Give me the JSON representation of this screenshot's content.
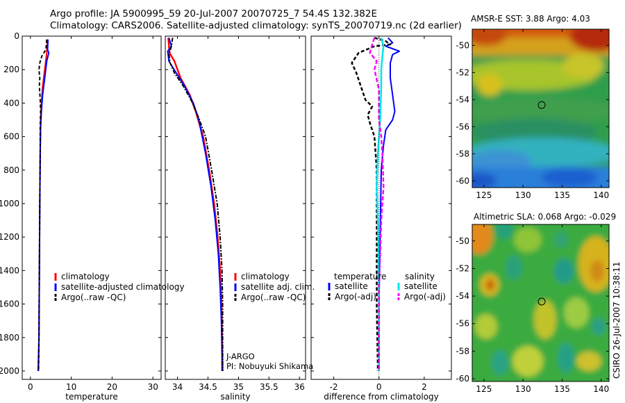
{
  "title_line1": "Argo profile: JA 5900995_59 20-Jul-2007 20070725_7 54.4S 132.382E",
  "title_line2": "Climatology: CARS2006. Satellite-adjusted climatology: synTS_20070719.nc (2d earlier)",
  "side_label": "CSIRO 26-Jul-2007 10:38:11",
  "colors": {
    "climatology": "#ff0000",
    "satellite": "#0000ff",
    "argo": "#000000",
    "sal_satellite": "#00e5ee",
    "sal_argo": "#ff00ff"
  },
  "chart_data": [
    {
      "type": "line",
      "id": "temperature",
      "xlabel": "temperature",
      "xlim": [
        -2,
        32
      ],
      "ylim": [
        2050,
        0
      ],
      "xticks": [
        0,
        10,
        20,
        30
      ],
      "yticks": [
        0,
        200,
        400,
        600,
        800,
        1000,
        1200,
        1400,
        1600,
        1800,
        2000
      ],
      "legend": [
        "climatology",
        "satellite-adjusted climatology",
        "Argo(..raw -QC)"
      ],
      "series": [
        {
          "name": "climatology",
          "points": [
            [
              4.2,
              20
            ],
            [
              4.0,
              100
            ],
            [
              3.5,
              200
            ],
            [
              3.0,
              300
            ],
            [
              2.7,
              400
            ],
            [
              2.5,
              500
            ],
            [
              2.4,
              700
            ],
            [
              2.3,
              1000
            ],
            [
              2.2,
              1400
            ],
            [
              2.1,
              1800
            ],
            [
              2.0,
              2000
            ]
          ]
        },
        {
          "name": "satellite",
          "points": [
            [
              4.3,
              20
            ],
            [
              4.2,
              80
            ],
            [
              4.5,
              100
            ],
            [
              4.0,
              150
            ],
            [
              3.5,
              250
            ],
            [
              3.0,
              350
            ],
            [
              2.7,
              450
            ],
            [
              2.5,
              550
            ],
            [
              2.4,
              700
            ],
            [
              2.3,
              1000
            ],
            [
              2.2,
              1400
            ],
            [
              2.1,
              1800
            ],
            [
              1.9,
              2000
            ]
          ]
        },
        {
          "name": "Argo",
          "points": [
            [
              4.0,
              20
            ],
            [
              3.8,
              80
            ],
            [
              2.8,
              120
            ],
            [
              2.3,
              160
            ],
            [
              2.1,
              200
            ],
            [
              2.3,
              250
            ],
            [
              2.2,
              300
            ],
            [
              2.4,
              380
            ],
            [
              2.5,
              450
            ],
            [
              2.4,
              550
            ],
            [
              2.4,
              700
            ],
            [
              2.3,
              1000
            ],
            [
              2.2,
              1400
            ],
            [
              2.1,
              1800
            ],
            [
              2.0,
              2000
            ]
          ]
        }
      ]
    },
    {
      "type": "line",
      "id": "salinity",
      "xlabel": "salinity",
      "xlim": [
        33.8,
        36.1
      ],
      "ylim": [
        2050,
        0
      ],
      "xticks": [
        34,
        34.5,
        35,
        35.5,
        36
      ],
      "xticklabels": [
        "34",
        "34.5",
        "35",
        "35.5",
        "36"
      ],
      "legend": [
        "climatology",
        "satellite adj. clim.",
        "Argo(..raw -QC)"
      ],
      "annotations": [
        "J-ARGO",
        "PI: Nobuyuki Shikama"
      ],
      "series": [
        {
          "name": "climatology",
          "points": [
            [
              33.85,
              10
            ],
            [
              33.87,
              100
            ],
            [
              33.95,
              150
            ],
            [
              34.05,
              250
            ],
            [
              34.2,
              350
            ],
            [
              34.3,
              450
            ],
            [
              34.42,
              600
            ],
            [
              34.52,
              800
            ],
            [
              34.6,
              1000
            ],
            [
              34.66,
              1200
            ],
            [
              34.7,
              1400
            ],
            [
              34.72,
              1600
            ],
            [
              34.73,
              1800
            ],
            [
              34.74,
              2000
            ]
          ]
        },
        {
          "name": "satellite",
          "points": [
            [
              33.86,
              10
            ],
            [
              33.9,
              60
            ],
            [
              33.84,
              90
            ],
            [
              33.86,
              150
            ],
            [
              33.98,
              220
            ],
            [
              34.12,
              300
            ],
            [
              34.26,
              400
            ],
            [
              34.35,
              500
            ],
            [
              34.46,
              700
            ],
            [
              34.55,
              900
            ],
            [
              34.62,
              1100
            ],
            [
              34.67,
              1300
            ],
            [
              34.7,
              1500
            ],
            [
              34.72,
              1700
            ],
            [
              34.73,
              1900
            ],
            [
              34.73,
              2000
            ]
          ]
        },
        {
          "name": "Argo",
          "points": [
            [
              33.92,
              10
            ],
            [
              33.9,
              60
            ],
            [
              33.86,
              110
            ],
            [
              33.88,
              160
            ],
            [
              33.95,
              220
            ],
            [
              34.1,
              300
            ],
            [
              34.25,
              400
            ],
            [
              34.36,
              500
            ],
            [
              34.46,
              600
            ],
            [
              34.56,
              800
            ],
            [
              34.65,
              1000
            ],
            [
              34.7,
              1200
            ],
            [
              34.73,
              1400
            ],
            [
              34.74,
              1600
            ],
            [
              34.74,
              1800
            ],
            [
              34.74,
              2000
            ]
          ]
        }
      ]
    },
    {
      "type": "line",
      "id": "difference",
      "xlabel": "difference from climatology",
      "xlim": [
        -3,
        3.2
      ],
      "ylim": [
        2050,
        0
      ],
      "xticks": [
        -2,
        0,
        2
      ],
      "legend_left_title": "temperature",
      "legend_right_title": "salinity",
      "legend_left": [
        "satellite",
        "Argo(-adj)"
      ],
      "legend_right": [
        "satellite",
        "Argo(-adj)"
      ],
      "series": [
        {
          "name": "temperature satellite",
          "points": [
            [
              0.4,
              10
            ],
            [
              0.6,
              40
            ],
            [
              0.3,
              60
            ],
            [
              0.9,
              90
            ],
            [
              0.6,
              110
            ],
            [
              0.5,
              160
            ],
            [
              0.5,
              250
            ],
            [
              0.6,
              350
            ],
            [
              0.7,
              450
            ],
            [
              0.6,
              500
            ],
            [
              0.3,
              560
            ],
            [
              0.2,
              650
            ],
            [
              0.1,
              800
            ],
            [
              0.05,
              1200
            ],
            [
              0.0,
              1600
            ],
            [
              0.0,
              2000
            ]
          ]
        },
        {
          "name": "temperature Argo",
          "points": [
            [
              -0.2,
              10
            ],
            [
              0.3,
              30
            ],
            [
              0.5,
              50
            ],
            [
              -0.2,
              60
            ],
            [
              -0.9,
              100
            ],
            [
              -1.2,
              160
            ],
            [
              -1.0,
              220
            ],
            [
              -0.8,
              300
            ],
            [
              -0.6,
              380
            ],
            [
              -0.3,
              420
            ],
            [
              -0.5,
              470
            ],
            [
              -0.4,
              520
            ],
            [
              -0.2,
              600
            ],
            [
              -0.1,
              800
            ],
            [
              -0.1,
              1200
            ],
            [
              -0.1,
              1600
            ],
            [
              -0.05,
              2000
            ]
          ]
        },
        {
          "name": "salinity satellite",
          "points": [
            [
              0.1,
              10
            ],
            [
              0.2,
              60
            ],
            [
              0.15,
              120
            ],
            [
              0.1,
              200
            ],
            [
              0.1,
              300
            ],
            [
              0.05,
              500
            ],
            [
              -0.05,
              700
            ],
            [
              -0.1,
              900
            ],
            [
              -0.05,
              1100
            ],
            [
              -0.02,
              1300
            ],
            [
              0.0,
              1600
            ],
            [
              0.0,
              2000
            ]
          ]
        },
        {
          "name": "salinity Argo",
          "points": [
            [
              -0.2,
              10
            ],
            [
              -0.3,
              50
            ],
            [
              -0.4,
              100
            ],
            [
              -0.1,
              150
            ],
            [
              -0.2,
              200
            ],
            [
              -0.1,
              260
            ],
            [
              0.0,
              320
            ],
            [
              0.0,
              500
            ],
            [
              0.1,
              600
            ],
            [
              0.15,
              700
            ],
            [
              0.2,
              900
            ],
            [
              0.1,
              1100
            ],
            [
              0.05,
              1300
            ],
            [
              0.0,
              1500
            ],
            [
              0.0,
              1800
            ],
            [
              0.0,
              2000
            ]
          ]
        }
      ]
    },
    {
      "type": "heatmap",
      "id": "sst",
      "title": "AMSR-E SST: 3.88 Argo: 4.03",
      "xlim": [
        123.5,
        141
      ],
      "ylim": [
        -60.5,
        -48.8
      ],
      "xticks": [
        125,
        130,
        135,
        140
      ],
      "yticks": [
        -50,
        -52,
        -54,
        -56,
        -58,
        -60
      ],
      "marker": [
        132.38,
        -54.4
      ]
    },
    {
      "type": "heatmap",
      "id": "sla",
      "title": "Altimetric SLA: 0.068 Argo: -0.029",
      "xlim": [
        123.5,
        141
      ],
      "ylim": [
        -60.2,
        -48.8
      ],
      "xticks": [
        125,
        130,
        135,
        140
      ],
      "yticks": [
        -50,
        -52,
        -54,
        -56,
        -58,
        -60
      ],
      "marker": [
        132.38,
        -54.4
      ]
    }
  ]
}
